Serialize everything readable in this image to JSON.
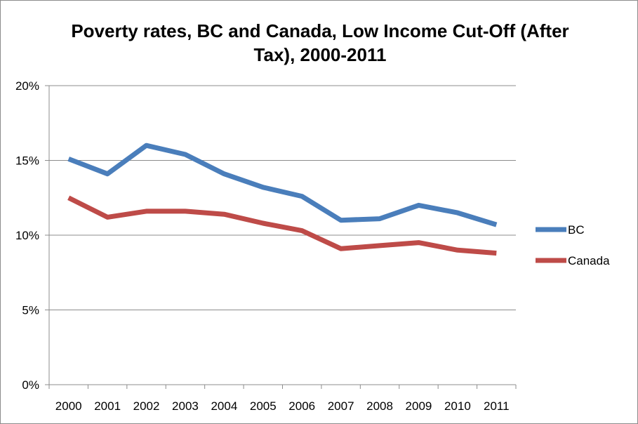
{
  "chart_data": {
    "type": "line",
    "title": "Poverty rates, BC and Canada, Low Income Cut-Off (After Tax), 2000-2011",
    "xlabel": "",
    "ylabel": "",
    "categories": [
      "2000",
      "2001",
      "2002",
      "2003",
      "2004",
      "2005",
      "2006",
      "2007",
      "2008",
      "2009",
      "2010",
      "2011"
    ],
    "yticks": [
      "0%",
      "5%",
      "10%",
      "15%",
      "20%"
    ],
    "ylim": [
      0,
      20
    ],
    "grid": true,
    "legend_position": "right",
    "series": [
      {
        "name": "BC",
        "color": "#4a7ebb",
        "values": [
          15.1,
          14.1,
          16.0,
          15.4,
          14.1,
          13.2,
          12.6,
          11.0,
          11.1,
          12.0,
          11.5,
          10.7
        ]
      },
      {
        "name": "Canada",
        "color": "#be4b48",
        "values": [
          12.5,
          11.2,
          11.6,
          11.6,
          11.4,
          10.8,
          10.3,
          9.1,
          9.3,
          9.5,
          9.0,
          8.8
        ]
      }
    ]
  }
}
